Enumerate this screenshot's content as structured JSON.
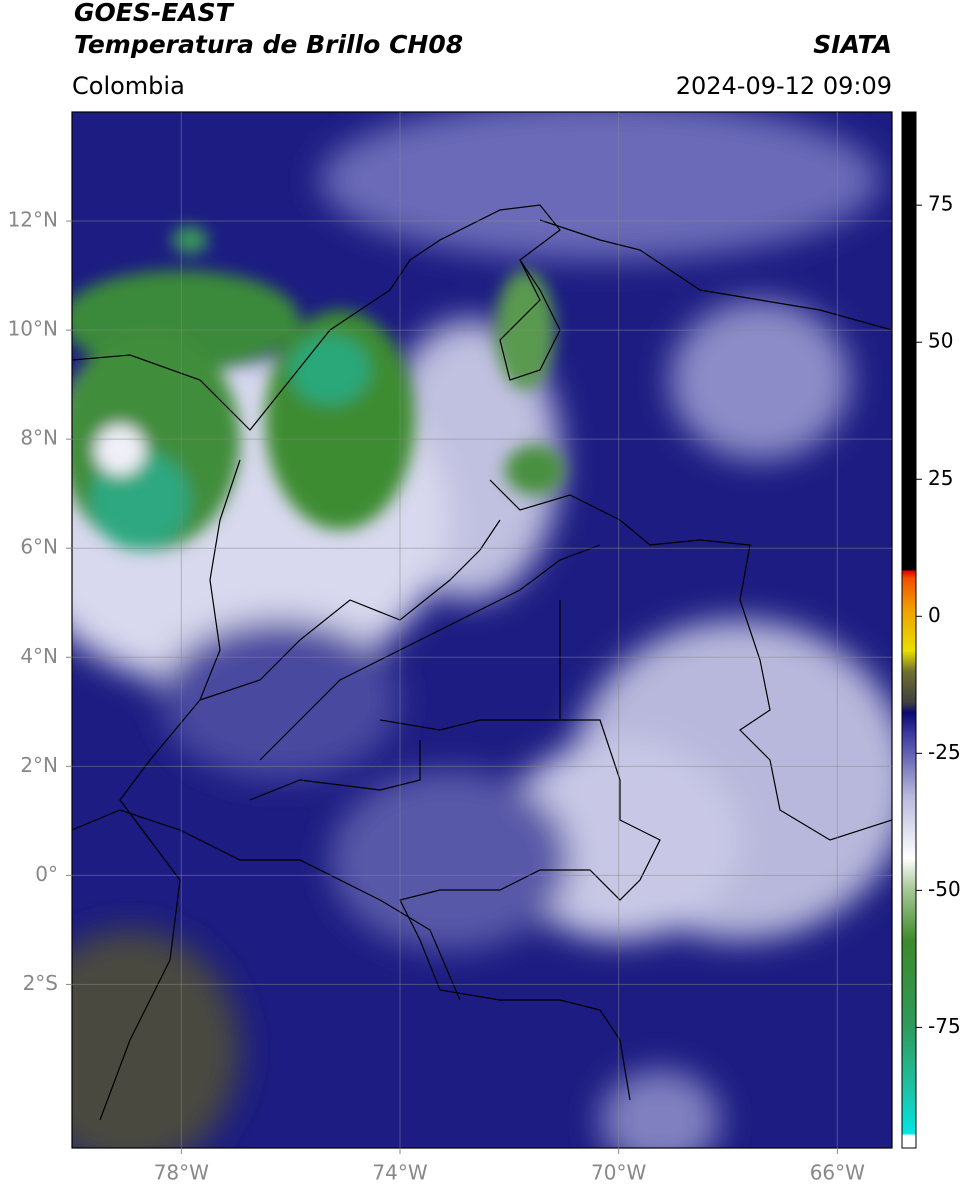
{
  "header": {
    "title": "GOES-EAST",
    "subtitle": "Temperatura de Brillo CH08",
    "region": "Colombia",
    "source": "SIATA",
    "datetime": "2024-09-12 09:09"
  },
  "map": {
    "xlim": [
      -80,
      -65
    ],
    "ylim": [
      -5,
      14
    ],
    "xticks": [
      {
        "value": -78,
        "label": "78°W"
      },
      {
        "value": -74,
        "label": "74°W"
      },
      {
        "value": -70,
        "label": "70°W"
      },
      {
        "value": -66,
        "label": "66°W"
      }
    ],
    "yticks": [
      {
        "value": 12,
        "label": "12°N"
      },
      {
        "value": 10,
        "label": "10°N"
      },
      {
        "value": 8,
        "label": "8°N"
      },
      {
        "value": 6,
        "label": "6°N"
      },
      {
        "value": 4,
        "label": "4°N"
      },
      {
        "value": 2,
        "label": "2°N"
      },
      {
        "value": 0,
        "label": "0°"
      },
      {
        "value": -2,
        "label": "2°S"
      }
    ]
  },
  "colorbar": {
    "lim": [
      -97,
      92
    ],
    "ticks": [
      75,
      50,
      25,
      0,
      -25,
      -50,
      -75
    ]
  }
}
